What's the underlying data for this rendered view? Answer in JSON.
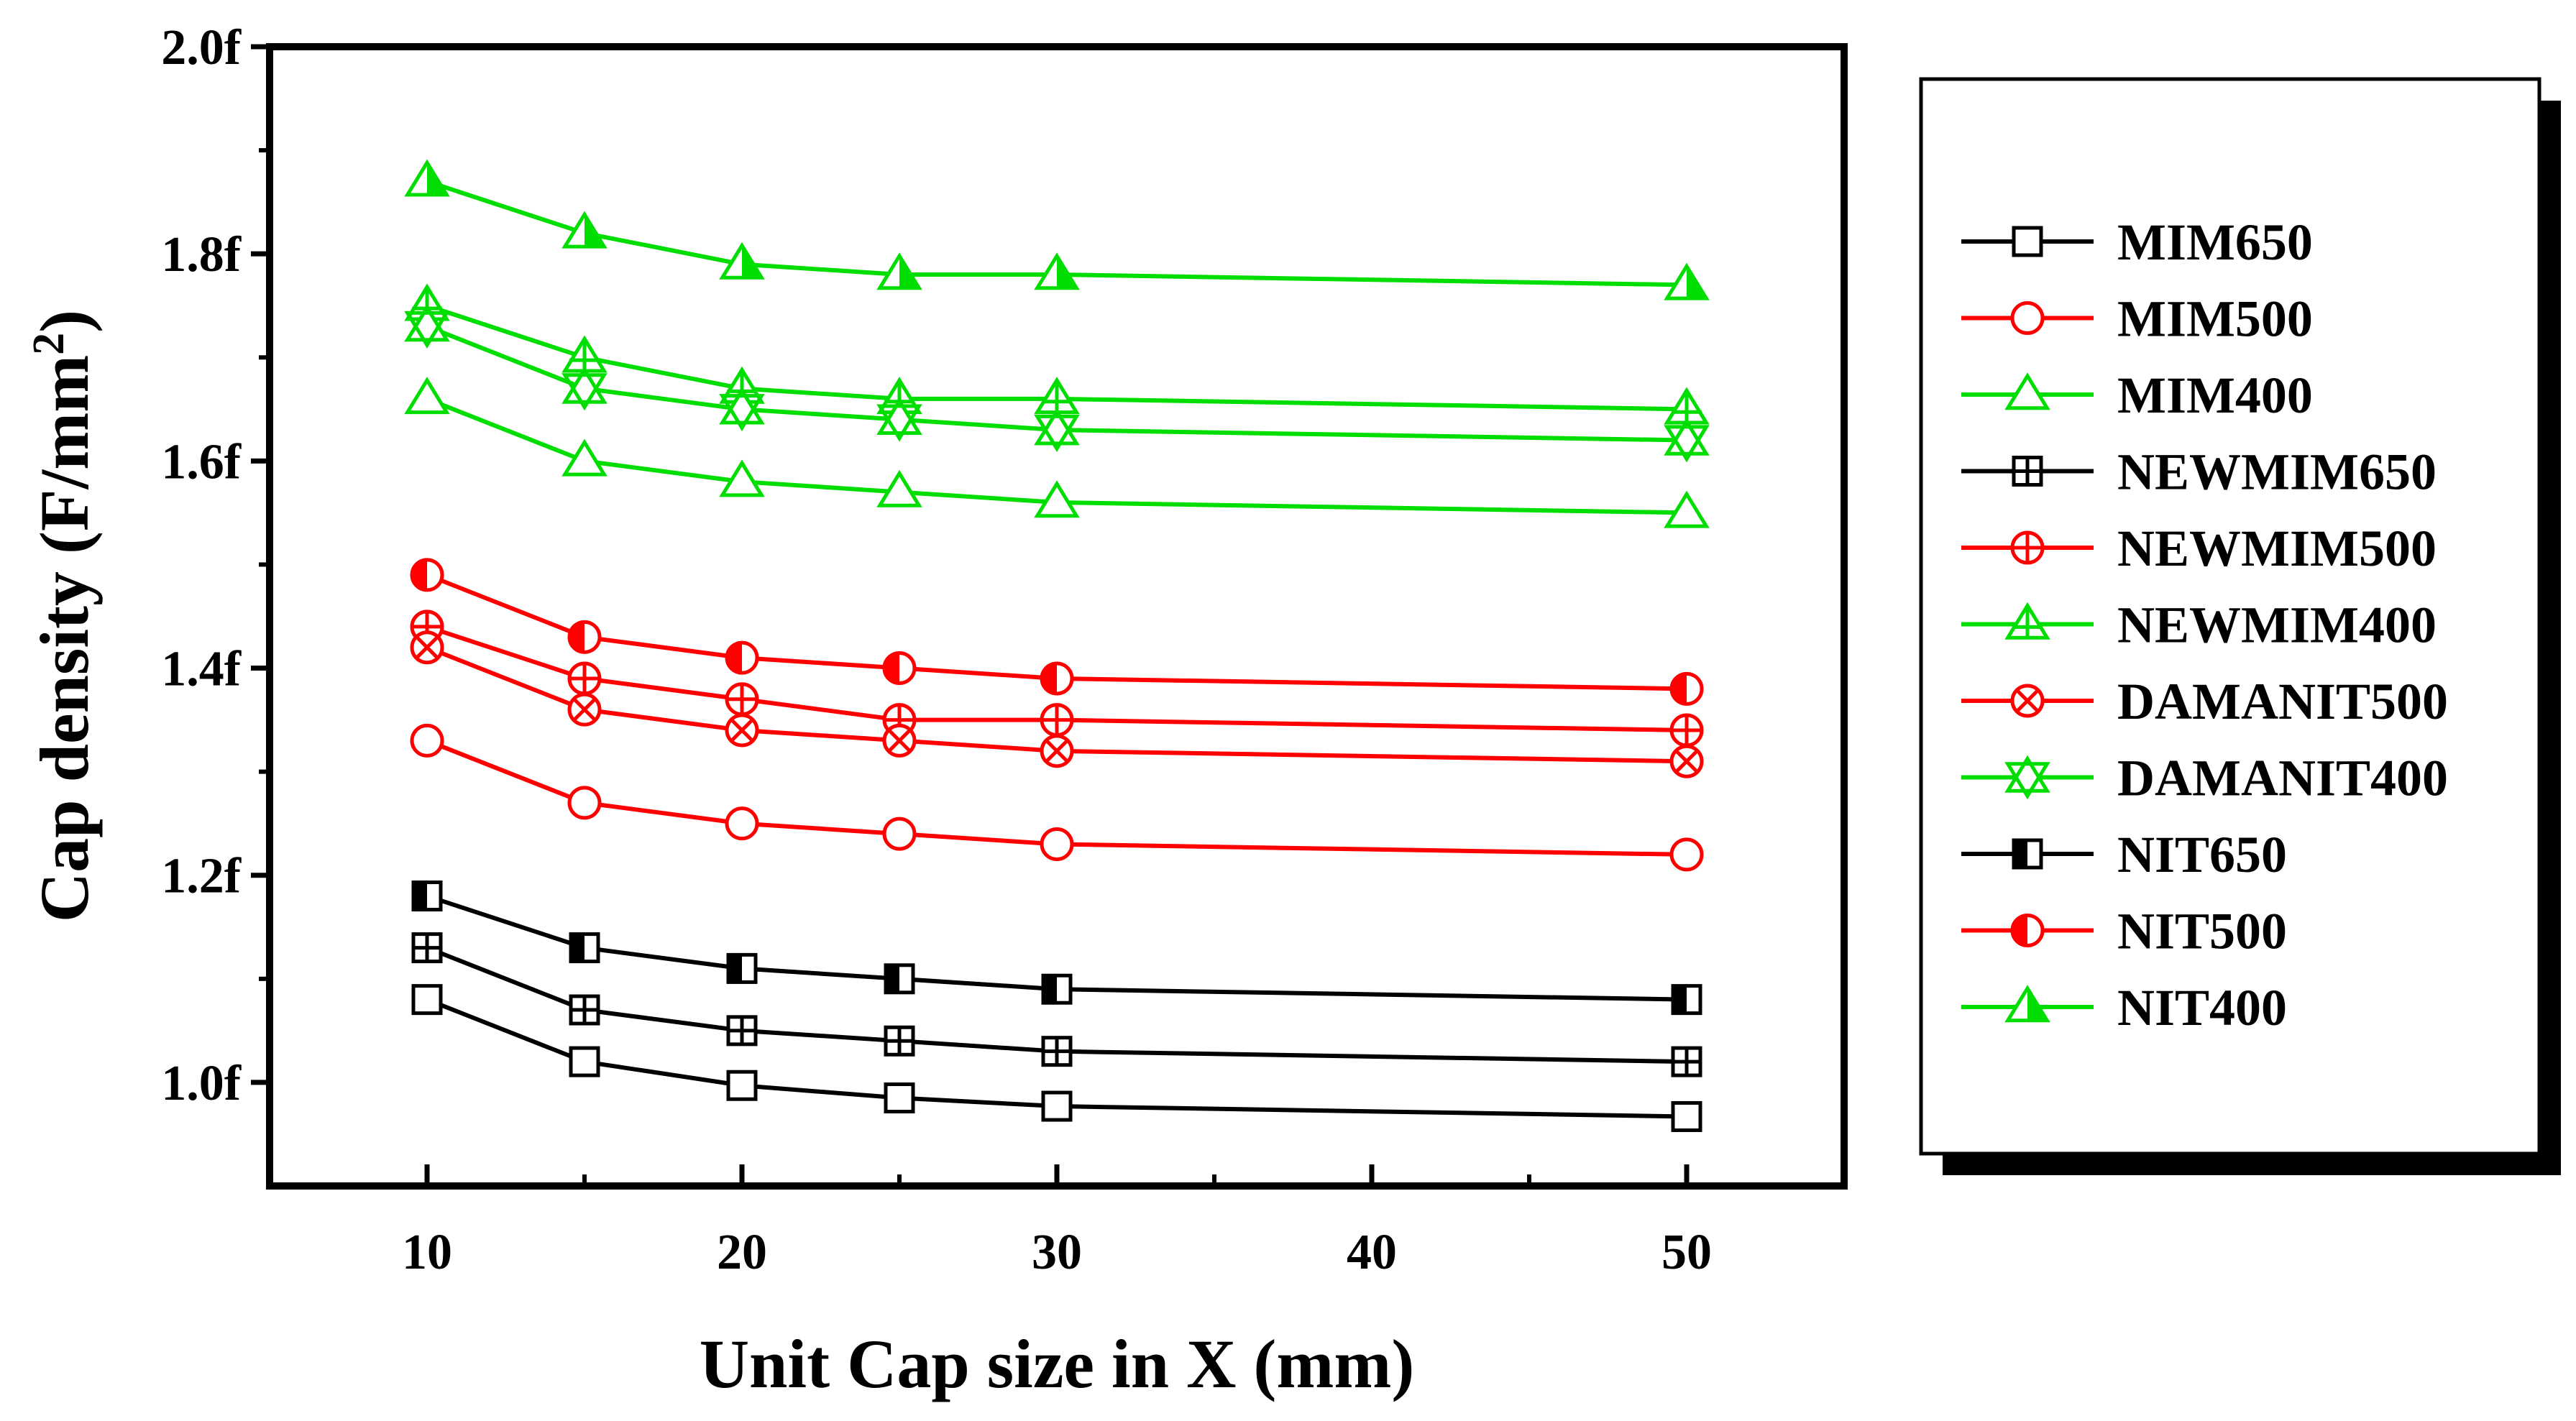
{
  "chart_data": {
    "type": "line",
    "xlabel": "Unit Cap size in X (mm)",
    "ylabel_main": "Cap density (F/mm",
    "ylabel_superscript": "2",
    "ylabel_close": ")",
    "xlim": [
      5,
      55
    ],
    "ylim": [
      0.9,
      2.0
    ],
    "x_ticks": [
      10,
      20,
      30,
      40,
      50
    ],
    "x_tick_labels": [
      "10",
      "20",
      "30",
      "40",
      "50"
    ],
    "x_minor_ticks": [
      15,
      25,
      35,
      45
    ],
    "y_ticks": [
      1.0,
      1.2,
      1.4,
      1.6,
      1.8,
      2.0
    ],
    "y_tick_labels": [
      "1.0f",
      "1.2f",
      "1.4f",
      "1.6f",
      "1.8f",
      "2.0f"
    ],
    "y_minor_ticks": [
      1.1,
      1.3,
      1.5,
      1.7,
      1.9
    ],
    "legend_position": "right",
    "x": [
      10,
      15,
      20,
      25,
      30,
      50
    ],
    "series": [
      {
        "name": "MIM650",
        "color": "#000000",
        "marker": "square",
        "values": [
          1.08,
          1.02,
          0.997,
          0.985,
          0.977,
          0.967
        ]
      },
      {
        "name": "MIM500",
        "color": "#ff0000",
        "marker": "circle",
        "values": [
          1.33,
          1.27,
          1.25,
          1.24,
          1.23,
          1.22
        ]
      },
      {
        "name": "MIM400",
        "color": "#00dd00",
        "marker": "triangle",
        "values": [
          1.66,
          1.6,
          1.58,
          1.57,
          1.56,
          1.55
        ]
      },
      {
        "name": "NEWMIM650",
        "color": "#000000",
        "marker": "square-plus",
        "values": [
          1.13,
          1.07,
          1.05,
          1.04,
          1.03,
          1.02
        ]
      },
      {
        "name": "NEWMIM500",
        "color": "#ff0000",
        "marker": "circle-plus",
        "values": [
          1.44,
          1.39,
          1.37,
          1.35,
          1.35,
          1.34
        ]
      },
      {
        "name": "NEWMIM400",
        "color": "#00dd00",
        "marker": "triangle-plus",
        "values": [
          1.75,
          1.7,
          1.67,
          1.66,
          1.66,
          1.65
        ]
      },
      {
        "name": "DAMANIT500",
        "color": "#ff0000",
        "marker": "circle-x",
        "values": [
          1.42,
          1.36,
          1.34,
          1.33,
          1.32,
          1.31
        ]
      },
      {
        "name": "DAMANIT400",
        "color": "#00dd00",
        "marker": "triangle-x",
        "values": [
          1.73,
          1.67,
          1.65,
          1.64,
          1.63,
          1.62
        ]
      },
      {
        "name": "NIT650",
        "color": "#000000",
        "marker": "square-half",
        "values": [
          1.18,
          1.13,
          1.11,
          1.1,
          1.09,
          1.08
        ]
      },
      {
        "name": "NIT500",
        "color": "#ff0000",
        "marker": "circle-half",
        "values": [
          1.49,
          1.43,
          1.41,
          1.4,
          1.39,
          1.38
        ]
      },
      {
        "name": "NIT400",
        "color": "#00dd00",
        "marker": "triangle-filled",
        "values": [
          1.87,
          1.82,
          1.79,
          1.78,
          1.78,
          1.77
        ]
      }
    ]
  }
}
